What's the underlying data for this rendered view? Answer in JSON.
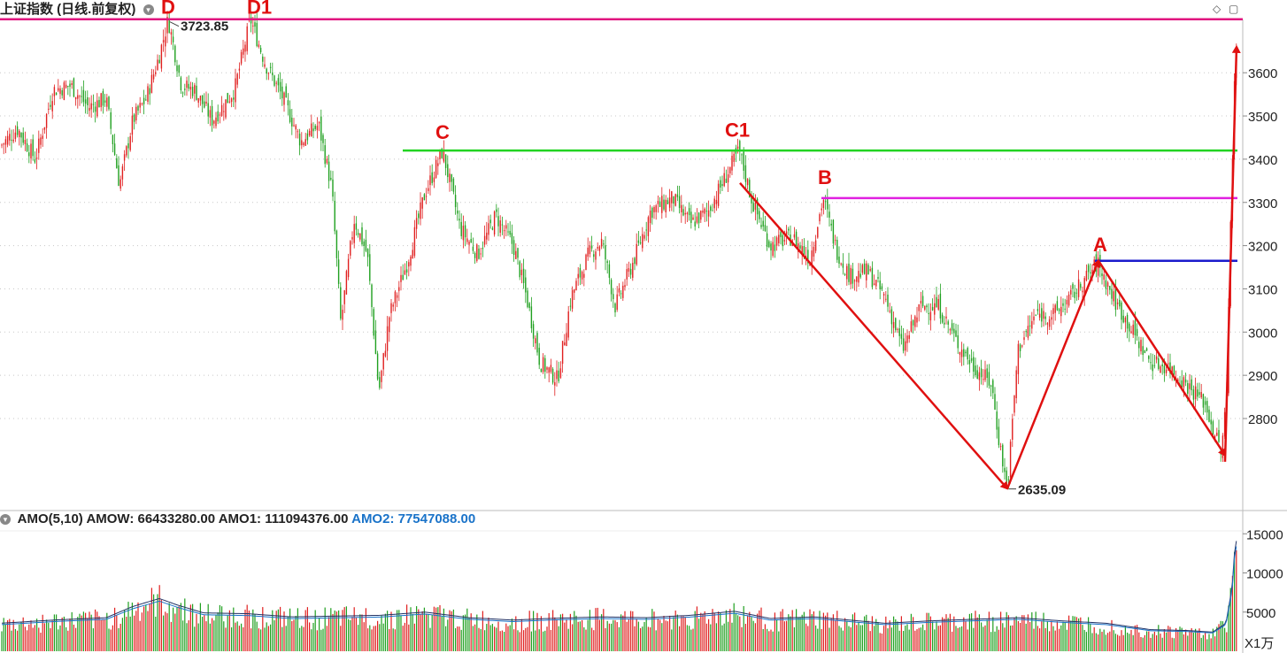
{
  "header": {
    "title": "上证指数 (日线.前复权)",
    "dropdown_icon": "chevron-down-icon",
    "controls": [
      "diamond-icon",
      "square-icon"
    ]
  },
  "indicator": {
    "name": "AMO(5,10)",
    "amow": "AMOW: 66433280.00",
    "amo1": "AMO1: 111094376.00",
    "amo2": "AMO2: 77547088.00",
    "unit": "X1万"
  },
  "chart_data": [
    {
      "type": "candlestick",
      "title": "上证指数 (日线.前复权)",
      "ylim": [
        2620,
        3720
      ],
      "yticks": [
        2800,
        2900,
        3000,
        3100,
        3200,
        3300,
        3400,
        3500,
        3600
      ],
      "max_label": "3723.85",
      "min_label": "2635.09",
      "path_points": [
        [
          0,
          3430
        ],
        [
          20,
          3470
        ],
        [
          40,
          3400
        ],
        [
          60,
          3560
        ],
        [
          80,
          3570
        ],
        [
          100,
          3520
        ],
        [
          120,
          3540
        ],
        [
          135,
          3340
        ],
        [
          150,
          3490
        ],
        [
          165,
          3540
        ],
        [
          180,
          3640
        ],
        [
          190,
          3723.85
        ],
        [
          205,
          3570
        ],
        [
          220,
          3560
        ],
        [
          240,
          3490
        ],
        [
          265,
          3560
        ],
        [
          283,
          3723.85
        ],
        [
          300,
          3620
        ],
        [
          320,
          3540
        ],
        [
          340,
          3440
        ],
        [
          360,
          3480
        ],
        [
          375,
          3330
        ],
        [
          385,
          3020
        ],
        [
          400,
          3260
        ],
        [
          415,
          3180
        ],
        [
          428,
          2860
        ],
        [
          440,
          3040
        ],
        [
          460,
          3160
        ],
        [
          480,
          3320
        ],
        [
          500,
          3420
        ],
        [
          520,
          3240
        ],
        [
          540,
          3180
        ],
        [
          560,
          3270
        ],
        [
          580,
          3200
        ],
        [
          595,
          3080
        ],
        [
          610,
          2930
        ],
        [
          630,
          2890
        ],
        [
          645,
          3080
        ],
        [
          665,
          3180
        ],
        [
          680,
          3210
        ],
        [
          695,
          3060
        ],
        [
          715,
          3160
        ],
        [
          735,
          3280
        ],
        [
          760,
          3310
        ],
        [
          780,
          3250
        ],
        [
          800,
          3280
        ],
        [
          820,
          3360
        ],
        [
          835,
          3420
        ],
        [
          850,
          3300
        ],
        [
          870,
          3200
        ],
        [
          895,
          3220
        ],
        [
          915,
          3170
        ],
        [
          930,
          3310
        ],
        [
          945,
          3190
        ],
        [
          960,
          3130
        ],
        [
          980,
          3140
        ],
        [
          1000,
          3080
        ],
        [
          1020,
          2960
        ],
        [
          1040,
          3060
        ],
        [
          1060,
          3060
        ],
        [
          1080,
          2980
        ],
        [
          1100,
          2920
        ],
        [
          1120,
          2880
        ],
        [
          1128,
          2760
        ],
        [
          1138,
          2635.09
        ],
        [
          1150,
          2960
        ],
        [
          1170,
          3040
        ],
        [
          1190,
          3040
        ],
        [
          1210,
          3080
        ],
        [
          1240,
          3160
        ],
        [
          1260,
          3070
        ],
        [
          1280,
          3000
        ],
        [
          1300,
          2930
        ],
        [
          1320,
          2920
        ],
        [
          1340,
          2880
        ],
        [
          1360,
          2840
        ],
        [
          1380,
          2720
        ],
        [
          1386,
          2860
        ],
        [
          1390,
          3260
        ],
        [
          1396,
          3660
        ]
      ],
      "annotations": {
        "points": [
          {
            "label": "D",
            "x": 190,
            "y": 3723.85
          },
          {
            "label": "D1",
            "x": 293,
            "y": 3723.85
          },
          {
            "label": "C",
            "x": 500,
            "y": 3435
          },
          {
            "label": "C1",
            "x": 833,
            "y": 3440
          },
          {
            "label": "B",
            "x": 932,
            "y": 3330
          },
          {
            "label": "A",
            "x": 1243,
            "y": 3175
          }
        ],
        "hlines": [
          {
            "y": 3723.85,
            "color": "#e0157f",
            "x_from": 0,
            "x_to": 1404
          },
          {
            "y": 3420,
            "color": "#22d322",
            "x_from": 455,
            "x_to": 1398
          },
          {
            "y": 3310,
            "color": "#e020e0",
            "x_from": 928,
            "x_to": 1398
          },
          {
            "y": 3165,
            "color": "#1a1acc",
            "x_from": 1237,
            "x_to": 1398
          }
        ],
        "arrows": [
          {
            "from": [
              836,
              3345
            ],
            "to": [
              1138,
              2638
            ]
          },
          {
            "from": [
              1138,
              2638
            ],
            "to": [
              1241,
              3165
            ]
          },
          {
            "from": [
              1241,
              3165
            ],
            "to": [
              1384,
              2715
            ]
          },
          {
            "from": [
              1384,
              2700
            ],
            "to": [
              1397,
              3660
            ]
          }
        ],
        "arrow_color": "#e01010"
      },
      "colors": {
        "up": "#e02020",
        "down": "#20a020"
      }
    },
    {
      "type": "bar",
      "title": "AMO(5,10)",
      "ylim": [
        0,
        15500
      ],
      "yticks": [
        5000,
        10000,
        15000
      ],
      "volume_points": [
        [
          0,
          3500
        ],
        [
          60,
          3900
        ],
        [
          120,
          4200
        ],
        [
          150,
          5600
        ],
        [
          180,
          6600
        ],
        [
          200,
          5800
        ],
        [
          230,
          4800
        ],
        [
          280,
          4700
        ],
        [
          330,
          4300
        ],
        [
          380,
          4400
        ],
        [
          430,
          4500
        ],
        [
          480,
          4900
        ],
        [
          530,
          4200
        ],
        [
          580,
          3900
        ],
        [
          620,
          4100
        ],
        [
          680,
          4300
        ],
        [
          730,
          4200
        ],
        [
          780,
          4500
        ],
        [
          830,
          5000
        ],
        [
          870,
          4100
        ],
        [
          920,
          4300
        ],
        [
          960,
          3900
        ],
        [
          1000,
          3500
        ],
        [
          1050,
          3800
        ],
        [
          1100,
          4000
        ],
        [
          1150,
          4200
        ],
        [
          1200,
          3800
        ],
        [
          1250,
          3500
        ],
        [
          1300,
          2700
        ],
        [
          1340,
          2600
        ],
        [
          1370,
          2400
        ],
        [
          1385,
          3500
        ],
        [
          1392,
          8000
        ],
        [
          1396,
          14500
        ],
        [
          1400,
          11000
        ]
      ],
      "lines": [
        {
          "name": "AMO1",
          "color": "#223366"
        },
        {
          "name": "AMO2",
          "color": "#1a73c9"
        }
      ]
    }
  ]
}
